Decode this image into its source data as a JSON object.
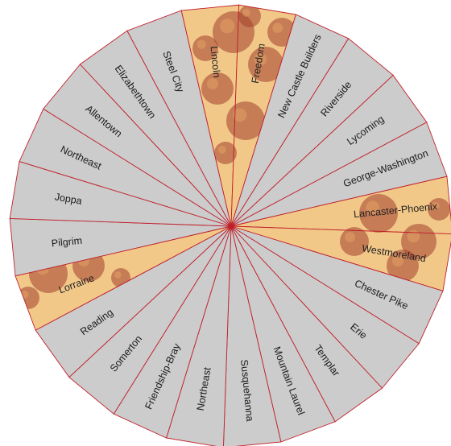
{
  "wheel": {
    "colors": {
      "slice_fill": "#cccccc",
      "slice_stroke": "#c0202a",
      "pizza_crust": "#e3a466",
      "pizza_cheese": "#f2c889",
      "pepperoni": "#a2402c"
    },
    "segments": [
      {
        "label": "Lincoln",
        "highlight": true
      },
      {
        "label": "Freedom",
        "highlight": true
      },
      {
        "label": "New Castle Builders",
        "highlight": false
      },
      {
        "label": "Riverside",
        "highlight": false
      },
      {
        "label": "Lycoming",
        "highlight": false
      },
      {
        "label": "George-Washington",
        "highlight": false
      },
      {
        "label": "Lancaster-Phoenix",
        "highlight": true
      },
      {
        "label": "Westmoreland",
        "highlight": true
      },
      {
        "label": "Chester Pike",
        "highlight": false
      },
      {
        "label": "Erie",
        "highlight": false
      },
      {
        "label": "Templar",
        "highlight": false
      },
      {
        "label": "Mountain Laurel",
        "highlight": false
      },
      {
        "label": "Susquehanna",
        "highlight": false
      },
      {
        "label": "Northeast",
        "highlight": false
      },
      {
        "label": "Friendship-Bray",
        "highlight": false
      },
      {
        "label": "Somerton",
        "highlight": false
      },
      {
        "label": "Reading",
        "highlight": false
      },
      {
        "label": "Lorraine",
        "highlight": true
      },
      {
        "label": "Pilgrim",
        "highlight": false
      },
      {
        "label": "Joppa",
        "highlight": false
      },
      {
        "label": "Northeast",
        "highlight": false
      },
      {
        "label": "Allentown",
        "highlight": false
      },
      {
        "label": "Elizabethtown",
        "highlight": false
      },
      {
        "label": "Steel City",
        "highlight": false
      }
    ]
  }
}
